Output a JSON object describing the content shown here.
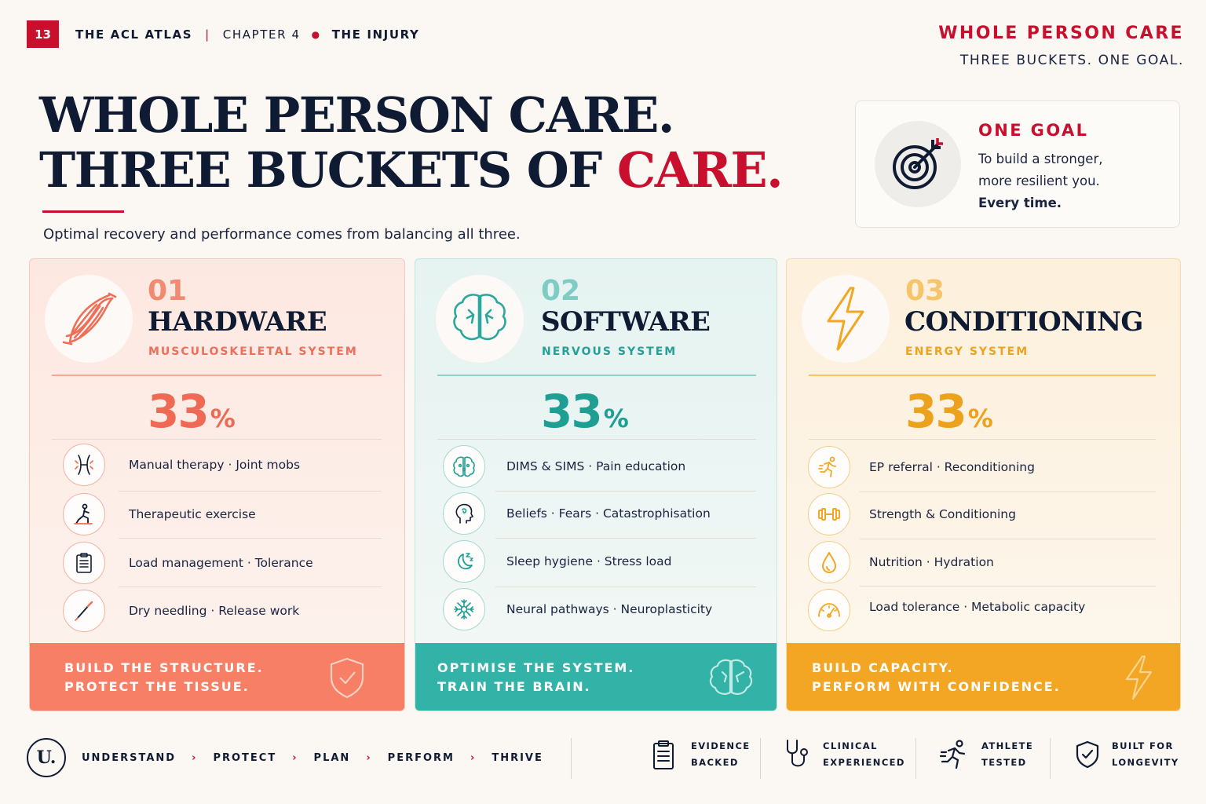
{
  "header": {
    "page_number": "13",
    "book": "THE ACL ATLAS",
    "chapter": "CHAPTER 4",
    "section": "THE INJURY",
    "right_title": "WHOLE PERSON CARE",
    "right_subtitle": "THREE BUCKETS. ONE GOAL."
  },
  "hero": {
    "title_line1": "WHOLE PERSON CARE.",
    "title_line2_a": "THREE BUCKETS OF ",
    "title_line2_b": "CARE.",
    "subtitle": "Optimal recovery and performance comes from balancing all three."
  },
  "goal": {
    "title": "ONE GOAL",
    "line1": "To build a stronger,",
    "line2": "more resilient you.",
    "line3": "Every time.",
    "icon": "target-icon"
  },
  "colors": {
    "brand_red": "#c8102e",
    "hardware": "#f2795f",
    "software": "#2fb3a8",
    "conditioning": "#f2a724",
    "navy": "#0f1a33"
  },
  "cards": [
    {
      "number": "01",
      "title": "HARDWARE",
      "subtitle": "MUSCULOSKELETAL SYSTEM",
      "percent": 33,
      "percent_value": "33",
      "percent_unit": "%",
      "icon": "muscle-icon",
      "items": [
        {
          "label": "Manual therapy · Joint mobs",
          "icon": "joint-icon"
        },
        {
          "label": "Therapeutic exercise",
          "icon": "lunge-icon"
        },
        {
          "label": "Load management · Tolerance",
          "icon": "clipboard-icon"
        },
        {
          "label": "Dry needling · Release work",
          "icon": "needle-icon"
        }
      ],
      "footer_line1": "BUILD THE STRUCTURE.",
      "footer_line2": "PROTECT THE TISSUE.",
      "footer_icon": "shield-icon"
    },
    {
      "number": "02",
      "title": "SOFTWARE",
      "subtitle": "NERVOUS SYSTEM",
      "percent": 33,
      "percent_value": "33",
      "percent_unit": "%",
      "icon": "brain-icon",
      "items": [
        {
          "label": "DIMS & SIMS · Pain education",
          "icon": "brain-small-icon"
        },
        {
          "label": "Beliefs · Fears · Catastrophisation",
          "icon": "head-icon"
        },
        {
          "label": "Sleep hygiene · Stress load",
          "icon": "moon-icon"
        },
        {
          "label": "Neural pathways · Neuroplasticity",
          "icon": "neuron-icon"
        }
      ],
      "footer_line1": "OPTIMISE THE SYSTEM.",
      "footer_line2": "TRAIN THE BRAIN.",
      "footer_icon": "brain-outline-icon"
    },
    {
      "number": "03",
      "title": "CONDITIONING",
      "subtitle": "ENERGY SYSTEM",
      "percent": 33,
      "percent_value": "33",
      "percent_unit": "%",
      "icon": "lightning-icon",
      "items": [
        {
          "label": "EP referral · Reconditioning",
          "icon": "runner-icon"
        },
        {
          "label": "Strength & Conditioning",
          "icon": "dumbbell-icon"
        },
        {
          "label": "Nutrition · Hydration",
          "icon": "drop-icon"
        },
        {
          "label": "Load tolerance · Metabolic capacity",
          "icon": "gauge-icon"
        }
      ],
      "footer_line1": "BUILD CAPACITY.",
      "footer_line2": "PERFORM WITH CONFIDENCE.",
      "footer_icon": "lightning-outline-icon"
    }
  ],
  "footer": {
    "logo": "U.",
    "steps": [
      "UNDERSTAND",
      "PROTECT",
      "PLAN",
      "PERFORM",
      "THRIVE"
    ],
    "badges": [
      {
        "line1": "EVIDENCE",
        "line2": "BACKED",
        "icon": "clipboard-icon"
      },
      {
        "line1": "CLINICAL",
        "line2": "EXPERIENCED",
        "icon": "stethoscope-icon"
      },
      {
        "line1": "ATHLETE",
        "line2": "TESTED",
        "icon": "runner-icon"
      },
      {
        "line1": "BUILT FOR",
        "line2": "LONGEVITY",
        "icon": "shield-check-icon"
      }
    ]
  }
}
